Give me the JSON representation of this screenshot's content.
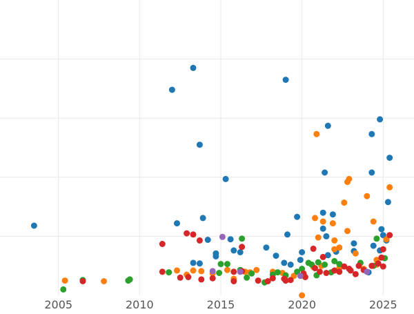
{
  "chart_data": {
    "type": "scatter",
    "title": "",
    "xlabel": "",
    "ylabel": "",
    "x_is_year": true,
    "xlim": [
      2001.4,
      2026.9
    ],
    "ylim": [
      0,
      5
    ],
    "x_ticks": [
      2005,
      2010,
      2015,
      2020,
      2025
    ],
    "x_tick_labels": [
      "2005",
      "2010",
      "2015",
      "2020",
      "2025"
    ],
    "y_grid": [
      1,
      2,
      3,
      4
    ],
    "grid": true,
    "legend": "none",
    "colors": [
      "#1f77b4",
      "#ff7f0e",
      "#2ca02c",
      "#d62728",
      "#9467bd"
    ],
    "series": [
      {
        "color": "#1f77b4",
        "points": [
          [
            2003.5,
            1.18
          ],
          [
            2013.3,
            3.85
          ],
          [
            2012.0,
            3.48
          ],
          [
            2013.7,
            2.55
          ],
          [
            2019.0,
            3.65
          ],
          [
            2021.6,
            2.87
          ],
          [
            2024.8,
            2.98
          ],
          [
            2024.3,
            2.73
          ],
          [
            2025.4,
            2.33
          ],
          [
            2015.3,
            1.97
          ],
          [
            2021.4,
            2.08
          ],
          [
            2024.3,
            2.08
          ],
          [
            2025.3,
            1.58
          ],
          [
            2013.9,
            1.31
          ],
          [
            2014.2,
            0.94
          ],
          [
            2012.3,
            1.22
          ],
          [
            2013.3,
            0.55
          ],
          [
            2013.7,
            0.54
          ],
          [
            2014.7,
            0.66
          ],
          [
            2014.7,
            0.71
          ],
          [
            2015.6,
            0.95
          ],
          [
            2015.8,
            0.76
          ],
          [
            2016.2,
            0.73
          ],
          [
            2017.8,
            0.81
          ],
          [
            2018.4,
            0.67
          ],
          [
            2018.9,
            0.55
          ],
          [
            2019.3,
            0.52
          ],
          [
            2019.7,
            1.33
          ],
          [
            2019.1,
            1.03
          ],
          [
            2020.0,
            0.73
          ],
          [
            2019.9,
            0.6
          ],
          [
            2021.3,
            1.4
          ],
          [
            2021.9,
            1.37
          ],
          [
            2021.3,
            1.13
          ],
          [
            2021.5,
            1.0
          ],
          [
            2021.6,
            0.68
          ],
          [
            2022.1,
            0.74
          ],
          [
            2023.2,
            0.88
          ],
          [
            2023.2,
            0.75
          ],
          [
            2024.4,
            0.84
          ],
          [
            2024.9,
            1.12
          ],
          [
            2025.0,
            1.02
          ],
          [
            2025.2,
            0.93
          ],
          [
            2024.1,
            0.39
          ],
          [
            2024.8,
            0.76
          ]
        ]
      },
      {
        "color": "#ff7f0e",
        "points": [
          [
            2005.4,
            0.25
          ],
          [
            2007.8,
            0.24
          ],
          [
            2012.3,
            0.42
          ],
          [
            2012.9,
            0.35
          ],
          [
            2013.3,
            0.42
          ],
          [
            2013.8,
            0.41
          ],
          [
            2014.5,
            0.37
          ],
          [
            2015.4,
            0.43
          ],
          [
            2015.8,
            0.28
          ],
          [
            2016.5,
            0.4
          ],
          [
            2016.8,
            0.39
          ],
          [
            2017.2,
            0.43
          ],
          [
            2018.2,
            0.4
          ],
          [
            2018.8,
            0.38
          ],
          [
            2019.5,
            0.33
          ],
          [
            2020.0,
            0.0
          ],
          [
            2020.9,
            2.73
          ],
          [
            2022.9,
            1.97
          ],
          [
            2022.8,
            1.92
          ],
          [
            2020.8,
            1.31
          ],
          [
            2021.3,
            1.25
          ],
          [
            2021.9,
            1.22
          ],
          [
            2022.6,
            1.57
          ],
          [
            2024.0,
            1.68
          ],
          [
            2024.4,
            1.25
          ],
          [
            2025.4,
            1.83
          ],
          [
            2022.8,
            1.09
          ],
          [
            2021.0,
            0.98
          ],
          [
            2022.0,
            0.93
          ],
          [
            2022.3,
            0.81
          ],
          [
            2022.0,
            0.78
          ],
          [
            2023.3,
            0.71
          ],
          [
            2024.6,
            0.6
          ],
          [
            2025.2,
            0.95
          ],
          [
            2020.7,
            0.48
          ],
          [
            2021.2,
            0.5
          ],
          [
            2022.3,
            0.46
          ],
          [
            2023.8,
            0.45
          ],
          [
            2024.6,
            0.52
          ]
        ]
      },
      {
        "color": "#2ca02c",
        "points": [
          [
            2005.3,
            0.1
          ],
          [
            2006.5,
            0.26
          ],
          [
            2009.3,
            0.25
          ],
          [
            2009.4,
            0.27
          ],
          [
            2011.8,
            0.39
          ],
          [
            2015.4,
            0.53
          ],
          [
            2017.7,
            0.22
          ],
          [
            2016.3,
            0.96
          ],
          [
            2016.9,
            0.37
          ],
          [
            2015.0,
            0.53
          ],
          [
            2014.9,
            0.38
          ],
          [
            2016.2,
            0.43
          ],
          [
            2018.2,
            0.35
          ],
          [
            2018.5,
            0.39
          ],
          [
            2019.0,
            0.34
          ],
          [
            2019.7,
            0.4
          ],
          [
            2020.0,
            0.45
          ],
          [
            2020.4,
            0.55
          ],
          [
            2020.6,
            0.52
          ],
          [
            2021.0,
            0.56
          ],
          [
            2021.4,
            0.52
          ],
          [
            2021.8,
            0.39
          ],
          [
            2022.3,
            0.53
          ],
          [
            2022.0,
            0.58
          ],
          [
            2023.6,
            0.55
          ],
          [
            2024.4,
            0.5
          ],
          [
            2024.6,
            0.96
          ],
          [
            2025.1,
            0.63
          ],
          [
            2016.6,
            0.3
          ],
          [
            2020.9,
            0.34
          ]
        ]
      },
      {
        "color": "#d62728",
        "points": [
          [
            2006.5,
            0.24
          ],
          [
            2011.4,
            0.87
          ],
          [
            2012.9,
            1.05
          ],
          [
            2013.3,
            1.03
          ],
          [
            2013.7,
            0.93
          ],
          [
            2011.4,
            0.4
          ],
          [
            2012.5,
            0.3
          ],
          [
            2013.0,
            0.31
          ],
          [
            2013.8,
            0.27
          ],
          [
            2014.5,
            0.29
          ],
          [
            2015.8,
            0.24
          ],
          [
            2015.8,
            0.4
          ],
          [
            2016.3,
            0.41
          ],
          [
            2016.3,
            0.82
          ],
          [
            2017.3,
            0.25
          ],
          [
            2017.9,
            0.24
          ],
          [
            2018.2,
            0.29
          ],
          [
            2019.0,
            0.25
          ],
          [
            2019.3,
            0.26
          ],
          [
            2020.2,
            0.31
          ],
          [
            2020.7,
            0.79
          ],
          [
            2020.8,
            0.46
          ],
          [
            2021.1,
            0.4
          ],
          [
            2021.3,
            0.65
          ],
          [
            2021.5,
            0.38
          ],
          [
            2022.0,
            0.42
          ],
          [
            2022.3,
            0.4
          ],
          [
            2022.6,
            0.49
          ],
          [
            2023.0,
            0.42
          ],
          [
            2023.3,
            0.36
          ],
          [
            2023.8,
            0.43
          ],
          [
            2024.3,
            0.5
          ],
          [
            2024.7,
            0.54
          ],
          [
            2024.9,
            0.64
          ],
          [
            2025.0,
            0.78
          ],
          [
            2025.4,
            1.02
          ],
          [
            2025.0,
            0.49
          ],
          [
            2023.5,
            0.5
          ],
          [
            2022.9,
            0.45
          ],
          [
            2020.1,
            0.37
          ],
          [
            2018.9,
            0.28
          ]
        ]
      },
      {
        "color": "#9467bd",
        "points": [
          [
            2015.1,
            0.99
          ],
          [
            2014.5,
            0.41
          ],
          [
            2016.2,
            0.4
          ],
          [
            2019.9,
            0.33
          ],
          [
            2024.0,
            0.4
          ]
        ]
      }
    ]
  }
}
